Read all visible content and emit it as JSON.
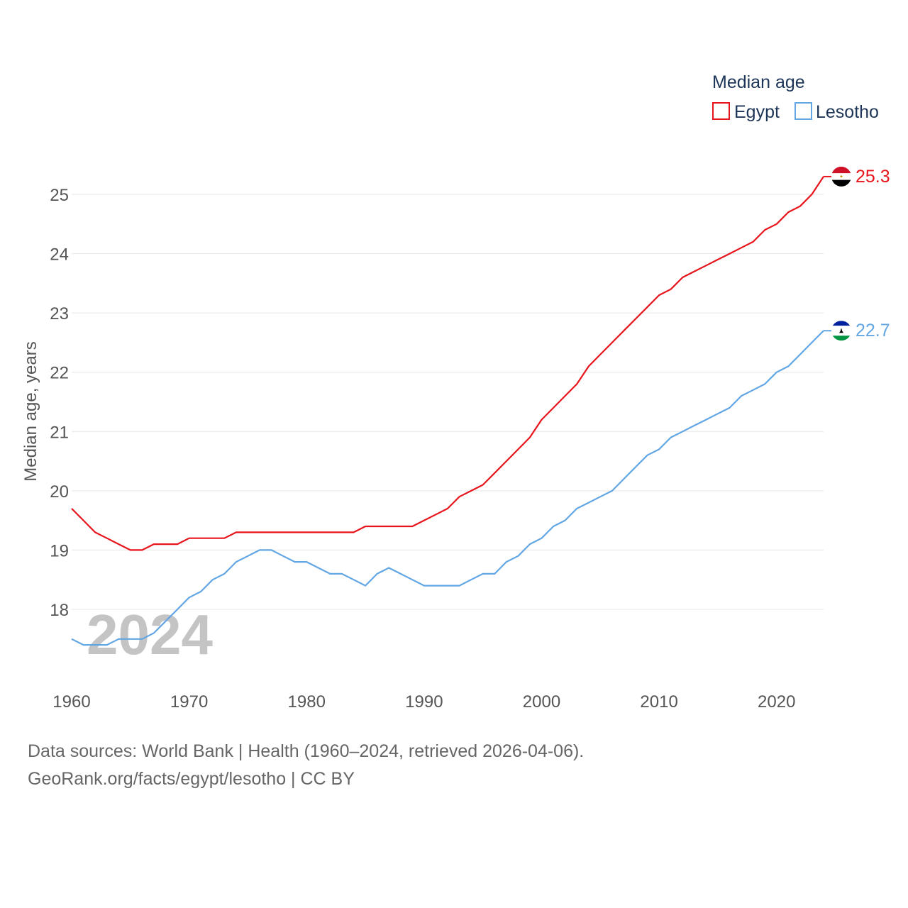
{
  "chart_data": {
    "type": "line",
    "title": "Median age",
    "xlabel": "",
    "ylabel": "Median age, years",
    "xlim": [
      1960,
      2024
    ],
    "ylim": [
      17.0,
      25.5
    ],
    "yticks": [
      18,
      19,
      20,
      21,
      22,
      23,
      24,
      25
    ],
    "xticks": [
      1960,
      1970,
      1980,
      1990,
      2000,
      2010,
      2020
    ],
    "grid": true,
    "legend_position": "top-right",
    "current_year": "2024",
    "x": [
      1960,
      1961,
      1962,
      1963,
      1964,
      1965,
      1966,
      1967,
      1968,
      1969,
      1970,
      1971,
      1972,
      1973,
      1974,
      1975,
      1976,
      1977,
      1978,
      1979,
      1980,
      1981,
      1982,
      1983,
      1984,
      1985,
      1986,
      1987,
      1988,
      1989,
      1990,
      1991,
      1992,
      1993,
      1994,
      1995,
      1996,
      1997,
      1998,
      1999,
      2000,
      2001,
      2002,
      2003,
      2004,
      2005,
      2006,
      2007,
      2008,
      2009,
      2010,
      2011,
      2012,
      2013,
      2014,
      2015,
      2016,
      2017,
      2018,
      2019,
      2020,
      2021,
      2022,
      2023,
      2024
    ],
    "series": [
      {
        "name": "Egypt",
        "color": "#e8141c",
        "end_label": "25.3",
        "flag": "egypt-flag",
        "values": [
          19.7,
          19.5,
          19.3,
          19.2,
          19.1,
          19.0,
          19.0,
          19.1,
          19.1,
          19.1,
          19.2,
          19.2,
          19.2,
          19.2,
          19.3,
          19.3,
          19.3,
          19.3,
          19.3,
          19.3,
          19.3,
          19.3,
          19.3,
          19.3,
          19.3,
          19.4,
          19.4,
          19.4,
          19.4,
          19.4,
          19.5,
          19.6,
          19.7,
          19.9,
          20.0,
          20.1,
          20.3,
          20.5,
          20.7,
          20.9,
          21.2,
          21.4,
          21.6,
          21.8,
          22.1,
          22.3,
          22.5,
          22.7,
          22.9,
          23.1,
          23.3,
          23.4,
          23.6,
          23.7,
          23.8,
          23.9,
          24.0,
          24.1,
          24.2,
          24.4,
          24.5,
          24.7,
          24.8,
          25.0,
          25.3
        ]
      },
      {
        "name": "Lesotho",
        "color": "#62a6e4",
        "end_label": "22.7",
        "flag": "lesotho-flag",
        "values": [
          17.5,
          17.4,
          17.4,
          17.4,
          17.5,
          17.5,
          17.5,
          17.6,
          17.8,
          18.0,
          18.2,
          18.3,
          18.5,
          18.6,
          18.8,
          18.9,
          19.0,
          19.0,
          18.9,
          18.8,
          18.8,
          18.7,
          18.6,
          18.6,
          18.5,
          18.4,
          18.6,
          18.7,
          18.6,
          18.5,
          18.4,
          18.4,
          18.4,
          18.4,
          18.5,
          18.6,
          18.6,
          18.8,
          18.9,
          19.1,
          19.2,
          19.4,
          19.5,
          19.7,
          19.8,
          19.9,
          20.0,
          20.2,
          20.4,
          20.6,
          20.7,
          20.9,
          21.0,
          21.1,
          21.2,
          21.3,
          21.4,
          21.6,
          21.7,
          21.8,
          22.0,
          22.1,
          22.3,
          22.5,
          22.7
        ]
      }
    ]
  },
  "source": {
    "line1": "Data sources: World Bank | Health (1960–2024, retrieved 2026-04-06).",
    "line2": "GeoRank.org/facts/egypt/lesotho | CC BY"
  }
}
